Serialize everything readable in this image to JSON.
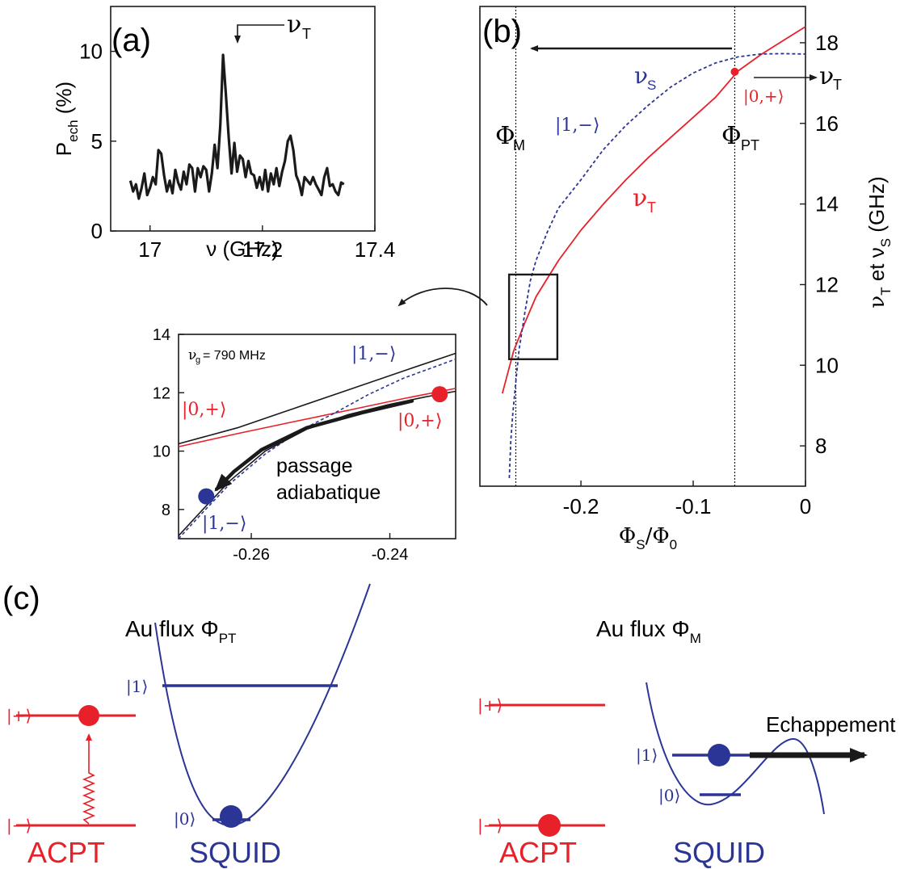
{
  "colors": {
    "red": "#e8202a",
    "blue": "#2b3595",
    "black": "#1a1a1a"
  },
  "panel_labels": {
    "a": "(a)",
    "b": "(b)",
    "c": "(c)"
  },
  "chart_data": [
    {
      "id": "a",
      "type": "line",
      "xlabel": "ν (GHz)",
      "ylabel": {
        "main": "P",
        "sub": "ech",
        "unit": " (%)"
      },
      "xlim": [
        16.93,
        17.4
      ],
      "ylim": [
        0,
        12.5
      ],
      "xticks": [
        17,
        17.2,
        17.4
      ],
      "yticks": [
        0,
        5,
        10
      ],
      "xtick_labels": [
        "17",
        "17.2",
        "17.4"
      ],
      "ytick_labels": [
        "0",
        "5",
        "10"
      ],
      "annotation": {
        "main": "ν",
        "sub": "T"
      },
      "series": [
        {
          "x": [
            16.965,
            16.97,
            16.975,
            16.98,
            16.985,
            16.99,
            16.995,
            17.0,
            17.005,
            17.01,
            17.015,
            17.02,
            17.025,
            17.03,
            17.035,
            17.04,
            17.045,
            17.05,
            17.055,
            17.06,
            17.065,
            17.07,
            17.075,
            17.08,
            17.085,
            17.09,
            17.095,
            17.1,
            17.105,
            17.11,
            17.115,
            17.12,
            17.125,
            17.13,
            17.135,
            17.14,
            17.145,
            17.15,
            17.155,
            17.16,
            17.165,
            17.17,
            17.175,
            17.18,
            17.185,
            17.19,
            17.195,
            17.2,
            17.205,
            17.21,
            17.215,
            17.22,
            17.225,
            17.23,
            17.235,
            17.24,
            17.245,
            17.25,
            17.255,
            17.26,
            17.265,
            17.27,
            17.275,
            17.28,
            17.285,
            17.29,
            17.295,
            17.3,
            17.305,
            17.31,
            17.315,
            17.32,
            17.325,
            17.33,
            17.335,
            17.34,
            17.345
          ],
          "y": [
            2.8,
            2.2,
            2.6,
            1.8,
            2.4,
            3.2,
            2.0,
            2.4,
            3.0,
            2.6,
            4.5,
            4.3,
            3.1,
            2.2,
            2.8,
            2.1,
            3.4,
            2.7,
            2.3,
            3.3,
            2.6,
            3.7,
            3.5,
            2.2,
            3.5,
            3.0,
            3.6,
            3.4,
            2.2,
            3.2,
            4.8,
            3.5,
            5.9,
            9.8,
            7.6,
            5.2,
            3.2,
            4.9,
            3.3,
            4.2,
            4.0,
            3.0,
            3.9,
            3.2,
            3.1,
            2.4,
            3.0,
            2.3,
            3.4,
            2.2,
            3.2,
            2.6,
            3.5,
            2.5,
            3.3,
            3.9,
            5.0,
            5.3,
            4.5,
            3.1,
            2.7,
            2.0,
            3.0,
            2.8,
            2.6,
            3.0,
            2.6,
            2.3,
            2.0,
            3.0,
            3.5,
            2.5,
            2.6,
            2.2,
            2.0,
            2.7,
            2.6
          ]
        }
      ]
    },
    {
      "id": "b",
      "type": "line",
      "xlabel": {
        "main": "Φ",
        "sub": "S",
        "mid": "/Φ",
        "sub2": "0"
      },
      "ylabel": {
        "main": "ν",
        "sub": "T",
        "mid": " et ν",
        "sub2": "S",
        "unit": " (GHz)"
      },
      "xlim": [
        -0.29,
        0.0
      ],
      "ylim": [
        7.0,
        18.9
      ],
      "xticks": [
        -0.2,
        -0.1,
        0
      ],
      "yticks": [
        8,
        10,
        12,
        14,
        16,
        18
      ],
      "xtick_labels": [
        "-0.2",
        "-0.1",
        "0"
      ],
      "ytick_labels": [
        "8",
        "10",
        "12",
        "14",
        "16",
        "18"
      ],
      "vlines": [
        -0.258,
        -0.063
      ],
      "zoom_box": {
        "x": [
          -0.264,
          -0.221
        ],
        "y": [
          10.15,
          12.25
        ]
      },
      "labels": {
        "phi_m": {
          "main": "Φ",
          "sub": "M"
        },
        "phi_pt": {
          "main": "Φ",
          "sub": "PT"
        },
        "nu_s": {
          "main": "ν",
          "sub": "S"
        },
        "nu_t": {
          "main": "ν",
          "sub": "T"
        },
        "nu_t_right": {
          "main": "ν",
          "sub": "T"
        },
        "ket_1m": "|1,−⟩",
        "ket_0p": "|0,+⟩"
      },
      "marker": {
        "x": -0.063,
        "y": 17.28
      },
      "series": [
        {
          "name": "ν_T",
          "color": "#e8202a",
          "style": "solid",
          "x": [
            -0.27,
            -0.26,
            -0.25,
            -0.24,
            -0.22,
            -0.2,
            -0.18,
            -0.16,
            -0.14,
            -0.12,
            -0.1,
            -0.08,
            -0.06,
            -0.04,
            -0.02,
            0.0
          ],
          "y": [
            9.3,
            10.35,
            11.05,
            11.7,
            12.6,
            13.35,
            14.0,
            14.6,
            15.15,
            15.65,
            16.15,
            16.65,
            17.3,
            17.7,
            18.05,
            18.4
          ]
        },
        {
          "name": "ν_S",
          "color": "#2b3595",
          "style": "dashed",
          "x": [
            -0.2638,
            -0.2625,
            -0.261,
            -0.258,
            -0.255,
            -0.25,
            -0.245,
            -0.24,
            -0.23,
            -0.22,
            -0.2,
            -0.18,
            -0.16,
            -0.14,
            -0.12,
            -0.1,
            -0.08,
            -0.06,
            -0.04,
            -0.02,
            0.0
          ],
          "y": [
            7.2,
            8.1,
            8.7,
            9.6,
            10.4,
            11.3,
            12.1,
            12.6,
            13.3,
            13.9,
            14.6,
            15.35,
            15.95,
            16.45,
            16.9,
            17.25,
            17.5,
            17.65,
            17.72,
            17.73,
            17.72
          ]
        }
      ]
    },
    {
      "id": "inset",
      "type": "line",
      "xlim": [
        -0.2705,
        -0.2305
      ],
      "ylim": [
        7.0,
        14.0
      ],
      "xticks": [
        -0.26,
        -0.24
      ],
      "yticks": [
        8,
        10,
        12,
        14
      ],
      "xtick_labels": [
        "-0.26",
        "-0.24"
      ],
      "ytick_labels": [
        "8",
        "10",
        "12",
        "14"
      ],
      "annotation": {
        "main": "ν",
        "sub": "g",
        "rest": "= 790 MHz"
      },
      "labels": {
        "ket_1m_top": "|1,−⟩",
        "ket_0p_left": "|0,+⟩",
        "ket_0p_right": "|0,+⟩",
        "ket_1m_bottom": "|1,−⟩",
        "passage_line1": "passage",
        "passage_line2": "adiabatique"
      },
      "points": [
        {
          "x": -0.2328,
          "y": 11.95,
          "color": "#e8202a"
        },
        {
          "x": -0.2665,
          "y": 8.45,
          "color": "#2b3595"
        }
      ],
      "path": {
        "x": [
          -0.2368,
          -0.244,
          -0.252,
          -0.2585,
          -0.2625,
          -0.265
        ],
        "y": [
          11.72,
          11.32,
          10.8,
          10.05,
          9.3,
          8.7
        ]
      },
      "series": [
        {
          "name": "black upper",
          "color": "#1a1a1a",
          "style": "solid",
          "x": [
            -0.2705,
            -0.262,
            -0.254,
            -0.246,
            -0.238,
            -0.2305
          ],
          "y": [
            10.25,
            10.8,
            11.45,
            12.1,
            12.75,
            13.35
          ]
        },
        {
          "name": "red",
          "color": "#e8202a",
          "style": "solid",
          "x": [
            -0.2705,
            -0.262,
            -0.254,
            -0.246,
            -0.238,
            -0.2305
          ],
          "y": [
            10.15,
            10.6,
            11.0,
            11.4,
            11.8,
            12.15
          ]
        },
        {
          "name": "blue dashed",
          "color": "#2b3595",
          "style": "dashed",
          "x": [
            -0.2705,
            -0.267,
            -0.263,
            -0.258,
            -0.253,
            -0.248,
            -0.243,
            -0.238,
            -0.2305
          ],
          "y": [
            7.0,
            7.9,
            8.9,
            9.9,
            10.7,
            11.3,
            11.95,
            12.5,
            13.15
          ]
        },
        {
          "name": "black lower",
          "color": "#1a1a1a",
          "style": "solid",
          "x": [
            -0.2705,
            -0.267,
            -0.263,
            -0.258,
            -0.252,
            -0.246,
            -0.24,
            -0.235,
            -0.2305
          ],
          "y": [
            7.1,
            8.0,
            9.0,
            10.0,
            10.75,
            11.25,
            11.6,
            11.85,
            12.05
          ]
        }
      ]
    }
  ],
  "panel_c": {
    "left": {
      "title": {
        "main": "Au flux Φ",
        "sub": "PT"
      },
      "acpt_label": "ACPT",
      "squid_label": "SQUID",
      "ket_plus": "|+⟩",
      "ket_minus": "|−⟩",
      "ket_1": "|1⟩",
      "ket_0": "|0⟩"
    },
    "right": {
      "title": {
        "main": "Au flux Φ",
        "sub": "M"
      },
      "acpt_label": "ACPT",
      "squid_label": "SQUID",
      "ket_plus": "|+⟩",
      "ket_minus": "|−⟩",
      "ket_1": "|1⟩",
      "ket_0": "|0⟩",
      "escape_label": "Echappement"
    }
  }
}
